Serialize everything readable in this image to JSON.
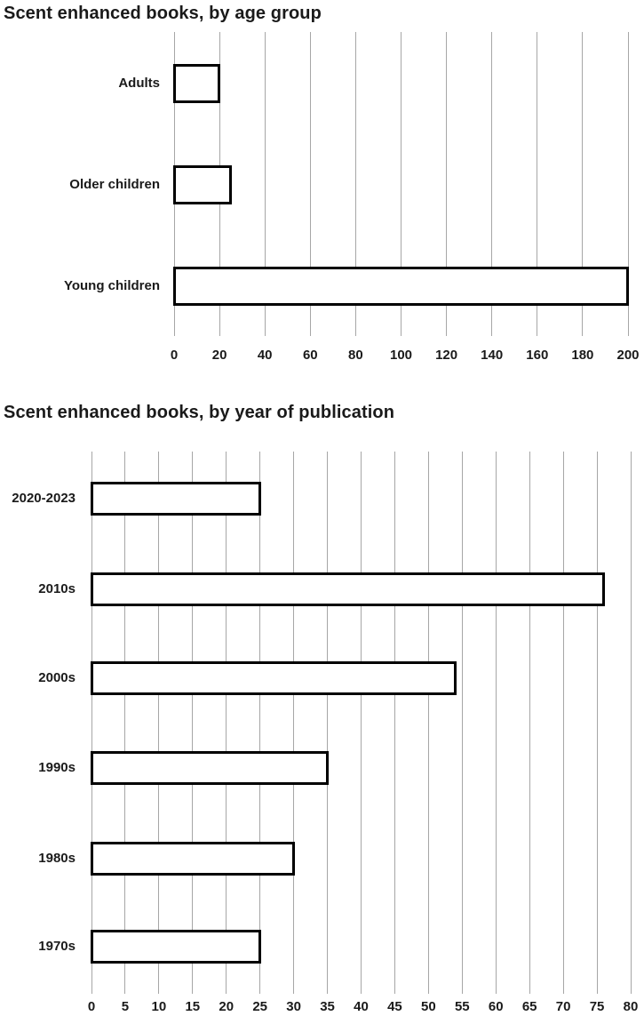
{
  "page": {
    "background": "#ffffff",
    "text_color": "#1a1a1a"
  },
  "chart_data": [
    {
      "type": "bar",
      "orientation": "horizontal",
      "title": "Scent enhanced books, by age group",
      "categories": [
        "Adults",
        "Older children",
        "Young children"
      ],
      "values": [
        20,
        25,
        200
      ],
      "xlabel": "",
      "ylabel": "",
      "xlim": [
        0,
        200
      ],
      "xticks": [
        0,
        20,
        40,
        60,
        80,
        100,
        120,
        140,
        160,
        180,
        200
      ],
      "grid": true,
      "legend": false,
      "bar_fill": "#ffffff",
      "bar_border": "#000000",
      "gridline_color": "#a6a6a6"
    },
    {
      "type": "bar",
      "orientation": "horizontal",
      "title": "Scent enhanced books, by year of publication",
      "categories": [
        "2020-2023",
        "2010s",
        "2000s",
        "1990s",
        "1980s",
        "1970s"
      ],
      "values": [
        25,
        76,
        54,
        35,
        30,
        25
      ],
      "xlabel": "",
      "ylabel": "",
      "xlim": [
        0,
        80
      ],
      "xticks": [
        0,
        5,
        10,
        15,
        20,
        25,
        30,
        35,
        40,
        45,
        50,
        55,
        60,
        65,
        70,
        75,
        80
      ],
      "grid": true,
      "legend": false,
      "bar_fill": "#ffffff",
      "bar_border": "#000000",
      "gridline_color": "#a6a6a6"
    }
  ]
}
